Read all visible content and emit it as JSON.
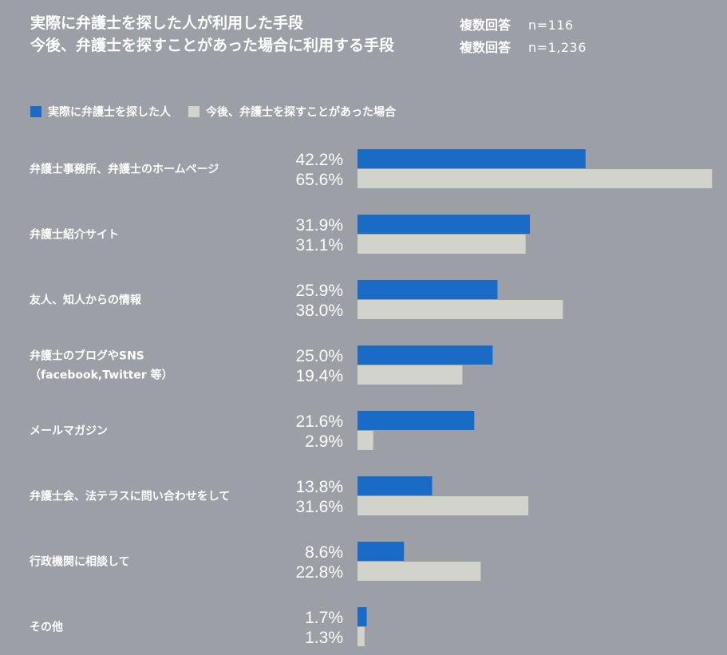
{
  "header": {
    "line1": "実際に弁護士を探した人が利用した手段",
    "line1_meta": "複数回答",
    "line1_n": "n=116",
    "line2": "今後、弁護士を探すことがあった場合に利用する手段",
    "line2_meta": "複数回答",
    "line2_n": "n=1,236"
  },
  "colors": {
    "background": "#9c9fa5",
    "actual": "#1a6bc5",
    "future": "#d2d3ca"
  },
  "chart_data": {
    "type": "bar",
    "orientation": "horizontal",
    "xlim": [
      0,
      66
    ],
    "legend_position": "top-left",
    "grid": false,
    "categories": [
      [
        "弁護士事務所、弁護士のホームページ"
      ],
      [
        "弁護士紹介サイト"
      ],
      [
        "友人、知人からの情報"
      ],
      [
        "弁護士のブログやSNS",
        "（facebook,Twitter 等）"
      ],
      [
        "メールマガジン"
      ],
      [
        "弁護士会、法テラスに問い合わせをして"
      ],
      [
        "行政機関に相談して"
      ],
      [
        "その他"
      ]
    ],
    "series": [
      {
        "name": "実際に弁護士を探した人",
        "values": [
          42.2,
          31.9,
          25.9,
          25.0,
          21.6,
          13.8,
          8.6,
          1.7
        ],
        "labels": [
          "42.2%",
          "31.9%",
          "25.9%",
          "25.0%",
          "21.6%",
          "13.8%",
          "8.6%",
          "1.7%"
        ]
      },
      {
        "name": "今後、弁護士を探すことがあった場合",
        "values": [
          65.6,
          31.1,
          38.0,
          19.4,
          2.9,
          31.6,
          22.8,
          1.3
        ],
        "labels": [
          "65.6%",
          "31.1%",
          "38.0%",
          "19.4%",
          "2.9%",
          "31.6%",
          "22.8%",
          "1.3%"
        ]
      }
    ]
  }
}
